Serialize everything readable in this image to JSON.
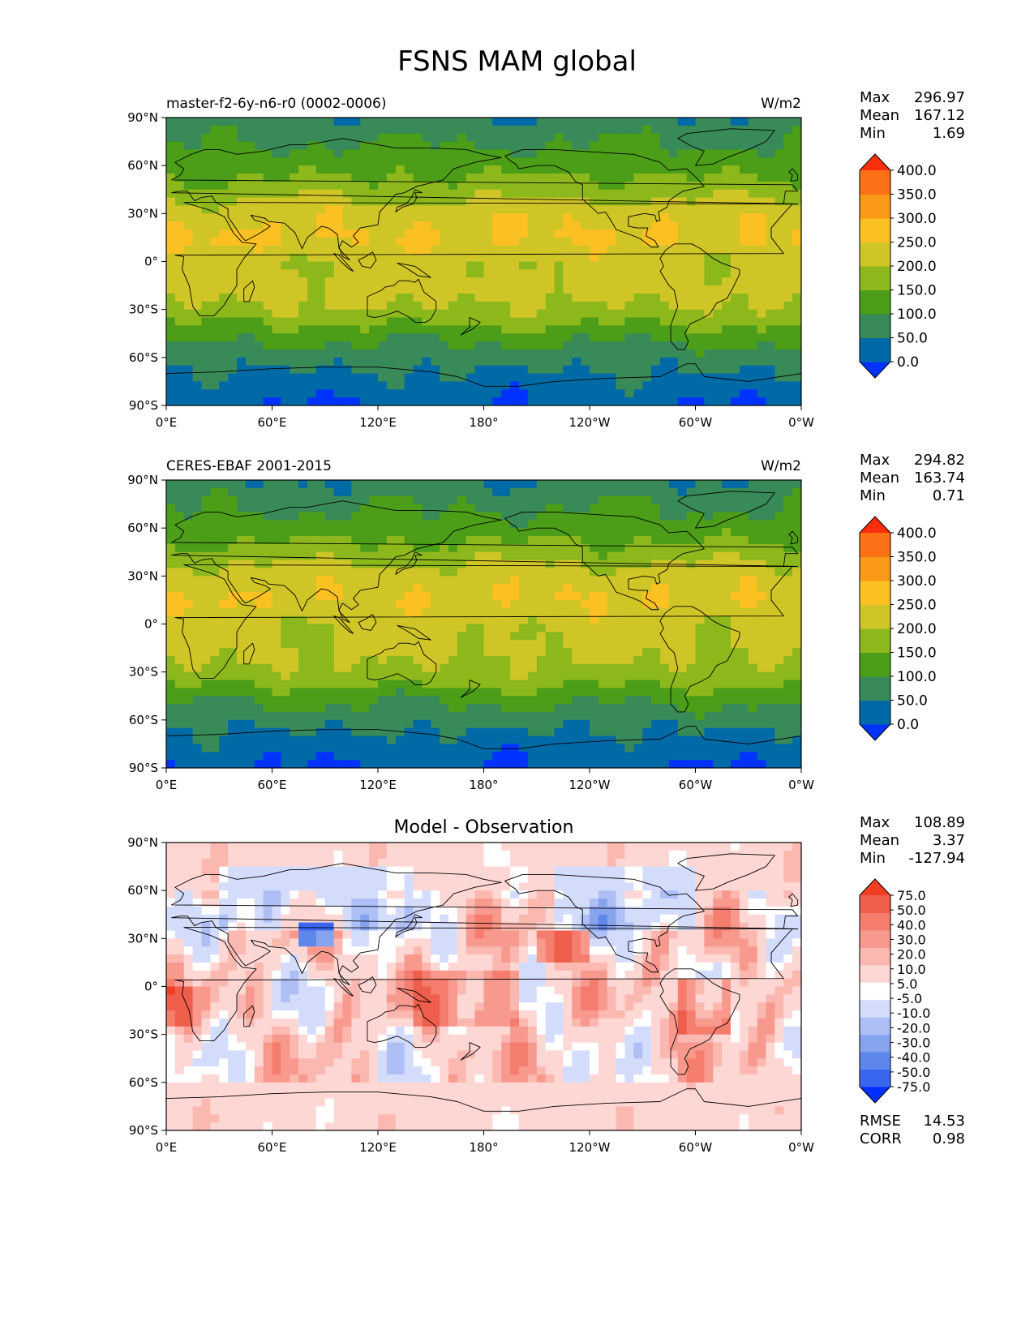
{
  "title": "FSNS MAM global",
  "colors": {
    "abs": [
      "#0033ff",
      "#006aa6",
      "#398a59",
      "#4c9e18",
      "#8db81c",
      "#cfc527",
      "#fbc021",
      "#fb9a18",
      "#fb7014",
      "#fb2e0d"
    ],
    "diff": [
      "#0030ff",
      "#3a66ef",
      "#5f86ea",
      "#86a3ee",
      "#aebff6",
      "#d4dcfb",
      "#ffffff",
      "#fdd7d3",
      "#fbb8b0",
      "#f8998e",
      "#f47d6e",
      "#ef5e4b",
      "#ef3f22"
    ],
    "coastline": "#000000"
  },
  "panels": [
    {
      "id": "model",
      "left_title": "master-f2-6y-n6-r0 (0002-0006)",
      "center_title": "",
      "units": "W/m2",
      "stats": [
        {
          "label": "Max",
          "value": "296.97"
        },
        {
          "label": "Mean",
          "value": "167.12"
        },
        {
          "label": "Min",
          "value": "1.69"
        }
      ]
    },
    {
      "id": "obs",
      "left_title": "CERES-EBAF 2001-2015",
      "center_title": "",
      "units": "W/m2",
      "stats": [
        {
          "label": "Max",
          "value": "294.82"
        },
        {
          "label": "Mean",
          "value": "163.74"
        },
        {
          "label": "Min",
          "value": "0.71"
        }
      ]
    },
    {
      "id": "diff",
      "left_title": "",
      "center_title": "Model - Observation",
      "units": "",
      "stats": [
        {
          "label": "Max",
          "value": "108.89"
        },
        {
          "label": "Mean",
          "value": "3.37"
        },
        {
          "label": "Min",
          "value": "-127.94"
        }
      ],
      "extra_stats": [
        {
          "label": "RMSE",
          "value": "14.53"
        },
        {
          "label": "CORR",
          "value": "0.98"
        }
      ]
    }
  ],
  "axes": {
    "lon_ticks": [
      "0°E",
      "60°E",
      "120°E",
      "180°",
      "120°W",
      "60°W",
      "0°W"
    ],
    "lat_ticks": [
      "90°N",
      "60°N",
      "30°N",
      "0°",
      "30°S",
      "60°S",
      "90°S"
    ]
  },
  "colorbars": {
    "abs_labels": [
      "400.0",
      "350.0",
      "300.0",
      "250.0",
      "200.0",
      "150.0",
      "100.0",
      "50.0",
      "0.0"
    ],
    "diff_labels": [
      "75.0",
      "50.0",
      "40.0",
      "30.0",
      "20.0",
      "10.0",
      "5.0",
      "-5.0",
      "-10.0",
      "-20.0",
      "-30.0",
      "-40.0",
      "-50.0",
      "-75.0"
    ]
  },
  "chart_data": [
    {
      "type": "heatmap",
      "title": "master-f2-6y-n6-r0 (0002-0006)",
      "units": "W/m2",
      "xlim": [
        0,
        360
      ],
      "ylim": [
        -90,
        90
      ],
      "levels": [
        0,
        50,
        100,
        150,
        200,
        250,
        300,
        350,
        400
      ],
      "zonal_mean_profile": {
        "lat": [
          90,
          75,
          60,
          45,
          30,
          15,
          0,
          -15,
          -30,
          -45,
          -60,
          -75,
          -90
        ],
        "value": [
          60,
          95,
          130,
          175,
          235,
          255,
          215,
          220,
          195,
          125,
          70,
          35,
          5
        ]
      },
      "max": 296.97,
      "mean": 167.12,
      "min": 1.69
    },
    {
      "type": "heatmap",
      "title": "CERES-EBAF 2001-2015",
      "units": "W/m2",
      "xlim": [
        0,
        360
      ],
      "ylim": [
        -90,
        90
      ],
      "levels": [
        0,
        50,
        100,
        150,
        200,
        250,
        300,
        350,
        400
      ],
      "zonal_mean_profile": {
        "lat": [
          90,
          75,
          60,
          45,
          30,
          15,
          0,
          -15,
          -30,
          -45,
          -60,
          -75,
          -90
        ],
        "value": [
          55,
          90,
          125,
          170,
          230,
          250,
          215,
          210,
          190,
          120,
          65,
          30,
          3
        ]
      },
      "max": 294.82,
      "mean": 163.74,
      "min": 0.71
    },
    {
      "type": "heatmap",
      "title": "Model - Observation",
      "xlim": [
        0,
        360
      ],
      "ylim": [
        -90,
        90
      ],
      "levels": [
        -75,
        -50,
        -40,
        -30,
        -20,
        -10,
        -5,
        5,
        10,
        20,
        30,
        40,
        50,
        75
      ],
      "max": 108.89,
      "mean": 3.37,
      "min": -127.94,
      "rmse": 14.53,
      "corr": 0.98
    }
  ]
}
